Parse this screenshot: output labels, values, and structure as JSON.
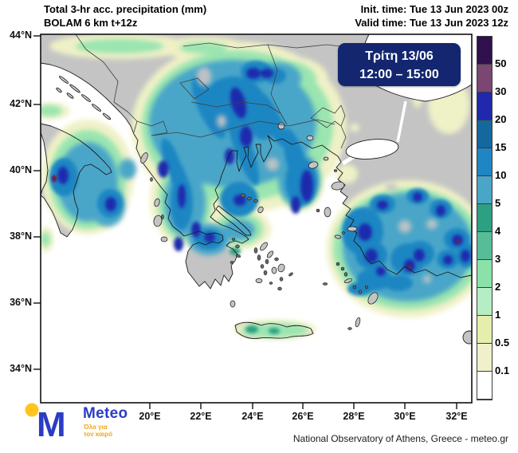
{
  "header": {
    "title": "Total 3-hr acc. precipitation (mm)",
    "model": "BOLAM 6 km t+12z",
    "init_time": "Init. time: Tue 13 Jun 2023 00z",
    "valid_time": "Valid time: Tue 13 Jun 2023 12z"
  },
  "overlay": {
    "day": "Τρίτη 13/06",
    "time_range": "12:00 – 15:00",
    "bg_color": "#13266f"
  },
  "map": {
    "lat_labels": [
      "44°N",
      "42°N",
      "40°N",
      "38°N",
      "36°N",
      "34°N"
    ],
    "lon_labels": [
      "20°E",
      "22°E",
      "24°E",
      "26°E",
      "28°E",
      "30°E",
      "32°E"
    ],
    "land_color": "#c4c4c4",
    "sea_color": "#ffffff",
    "coastline_color": "#1b1b1b",
    "border_color": "#3f3f3f"
  },
  "colorbar": {
    "tick_labels": [
      "50",
      "30",
      "20",
      "15",
      "10",
      "5",
      "4",
      "3",
      "2",
      "1",
      "0.5",
      "0.1"
    ],
    "segment_colors_top_to_bottom": [
      "#30104e",
      "#7c4672",
      "#2029ae",
      "#15689e",
      "#1f86c3",
      "#4aa6c9",
      "#2da082",
      "#57bd98",
      "#8ae2a8",
      "#b5edc4",
      "#e6eeac",
      "#f0f1ca",
      "#ffffff"
    ]
  },
  "footer": {
    "attribution": "National Observatory of Athens, Greece - meteo.gr",
    "logo": {
      "wordmark": "Meteo",
      "tagline_line1": "Όλα για",
      "tagline_line2": "τον καιρό",
      "blue": "#2b3cc4",
      "yellow": "#ffc41e",
      "tagline_color": "#f2a71c"
    }
  }
}
